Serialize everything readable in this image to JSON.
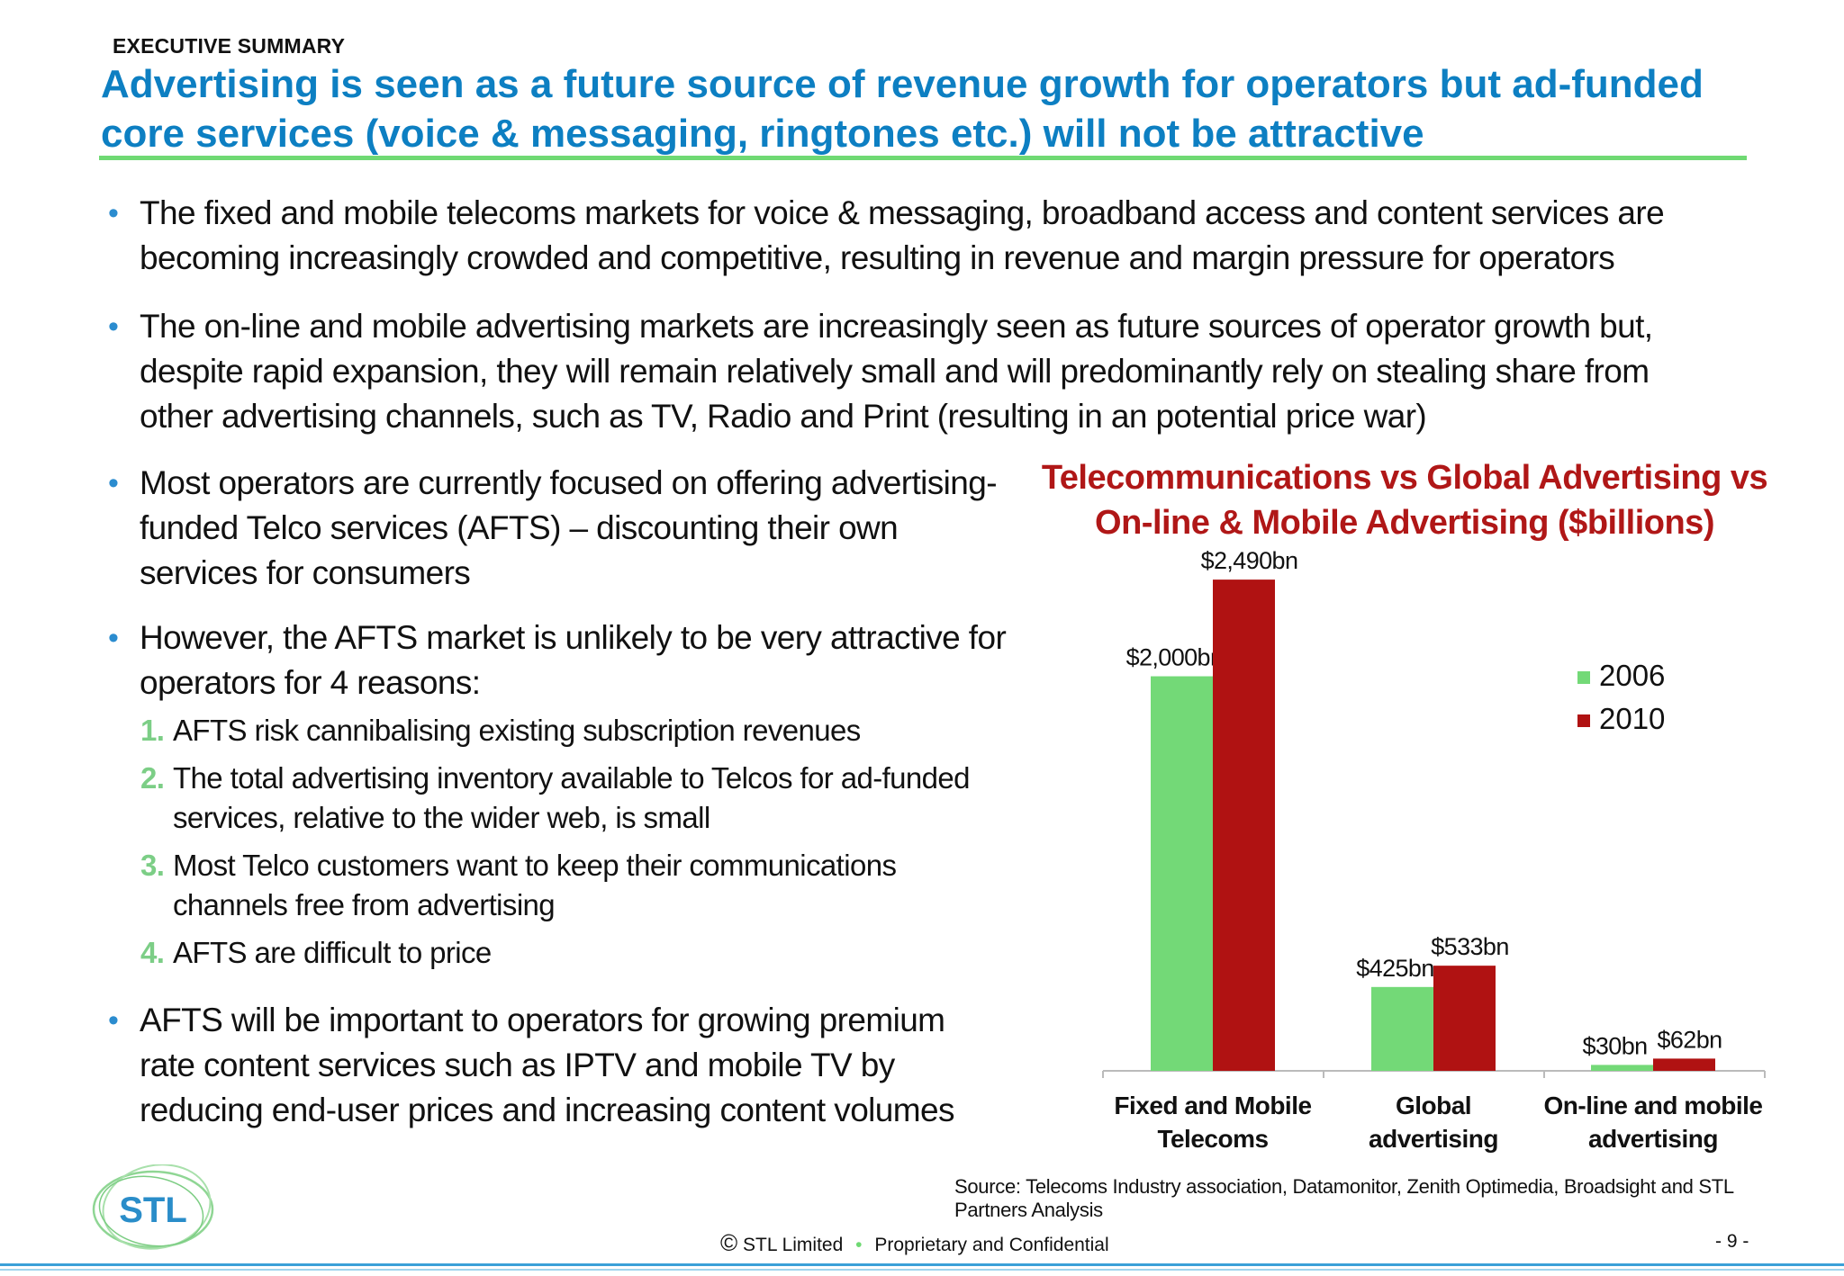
{
  "header": {
    "section_label": "EXECUTIVE SUMMARY",
    "headline": "Advertising is seen as a future source of revenue growth for operators but ad-funded core services (voice & messaging, ringtones etc.) will not be attractive"
  },
  "bullets_top": [
    "The fixed and mobile telecoms markets for voice & messaging, broadband access and content services are becoming increasingly crowded and competitive, resulting in revenue and margin pressure for operators",
    "The on-line and mobile advertising markets are increasingly seen as future sources of operator growth but, despite rapid expansion, they will remain relatively small and will predominantly rely on stealing share from other advertising channels, such as TV, Radio and Print (resulting in an potential price war)"
  ],
  "bullets_left": {
    "b1": "Most operators are currently focused on offering advertising-funded Telco services (AFTS) – discounting their own services for consumers",
    "b2": "However, the AFTS market is unlikely to be very attractive for operators for 4 reasons:",
    "reasons": [
      {
        "num": "1.",
        "text": "AFTS risk cannibalising existing subscription revenues"
      },
      {
        "num": "2.",
        "text": "The total advertising inventory available to Telcos for ad-funded services, relative to the wider web, is small"
      },
      {
        "num": "3.",
        "text": "Most Telco customers want to keep their communications channels free from advertising"
      },
      {
        "num": "4.",
        "text": "AFTS are difficult to price"
      }
    ],
    "b3": "AFTS will be important to operators for growing premium rate content services such as IPTV and mobile TV by reducing end-user prices and increasing content volumes"
  },
  "chart_data": {
    "type": "bar",
    "title": "Telecommunications vs Global Advertising vs On-line & Mobile Advertising ($billions)",
    "categories": [
      [
        "Fixed and Mobile",
        "Telecoms"
      ],
      [
        "Global",
        "advertising"
      ],
      [
        "On-line and mobile",
        "advertising"
      ]
    ],
    "series": [
      {
        "name": "2006",
        "color": "#73d977",
        "values": [
          2000,
          425,
          30
        ],
        "labels": [
          "$2,000bn",
          "$425bn",
          "$30bn"
        ]
      },
      {
        "name": "2010",
        "color": "#b01212",
        "values": [
          2490,
          533,
          62
        ],
        "labels": [
          "$2,490bn",
          "$533bn",
          "$62bn"
        ]
      }
    ],
    "ylim": [
      0,
      2600
    ],
    "legend_position": "top-right",
    "grid": false
  },
  "source": "Source: Telecoms Industry association, Datamonitor, Zenith Optimedia, Broadsight and STL Partners Analysis",
  "logo_text": "STL",
  "footer": {
    "copyright_symbol": "©",
    "company": "STL Limited",
    "confidential": "Proprietary and Confidential",
    "page": "- 9 -"
  }
}
